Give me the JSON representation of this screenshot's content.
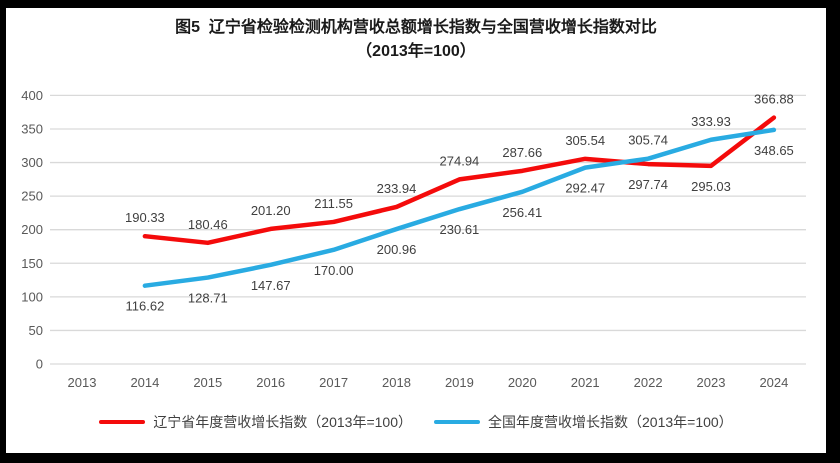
{
  "title": {
    "line1": "图5  辽宁省检验检测机构营收总额增长指数与全国营收增长指数对比",
    "line2": "（2013年=100）"
  },
  "chart_data": {
    "type": "line",
    "categories": [
      "2013",
      "2014",
      "2015",
      "2016",
      "2017",
      "2018",
      "2019",
      "2020",
      "2021",
      "2022",
      "2023",
      "2024"
    ],
    "series": [
      {
        "name": "辽宁省年度营收增长指数（2013年=100）",
        "color": "#f40b0b",
        "values": [
          null,
          190.33,
          180.46,
          201.2,
          211.55,
          233.94,
          274.94,
          287.66,
          305.54,
          297.74,
          295.03,
          366.88
        ],
        "value_labels": [
          "",
          "190.33",
          "180.46",
          "201.20",
          "211.55",
          "233.94",
          "274.94",
          "287.66",
          "305.54",
          "297.74",
          "295.03",
          "366.88"
        ],
        "label_sides": [
          "",
          "above",
          "above",
          "above",
          "above",
          "above",
          "above",
          "above",
          "above",
          "below",
          "below",
          "above"
        ]
      },
      {
        "name": "全国年度营收增长指数（2013年=100）",
        "color": "#29abe2",
        "values": [
          null,
          116.62,
          128.71,
          147.67,
          170.0,
          200.96,
          230.61,
          256.41,
          292.47,
          305.74,
          333.93,
          348.65
        ],
        "value_labels": [
          "",
          "116.62",
          "128.71",
          "147.67",
          "170.00",
          "200.96",
          "230.61",
          "256.41",
          "292.47",
          "305.74",
          "333.93",
          "348.65"
        ],
        "label_sides": [
          "",
          "below",
          "below",
          "below",
          "below",
          "below",
          "below",
          "below",
          "below",
          "above",
          "above",
          "below"
        ]
      }
    ],
    "xlabel": "",
    "ylabel": "",
    "ylim": [
      0,
      400
    ],
    "y_step": 50,
    "y_tick_labels": [
      "0",
      "50",
      "100",
      "150",
      "200",
      "250",
      "300",
      "350",
      "400"
    ],
    "grid": true,
    "legend_position": "bottom",
    "colors": {
      "gridline": "#d9d9d9",
      "axis_text": "#595959",
      "data_label_text": "#404040",
      "frame_border": "#000000",
      "background": "#ffffff"
    }
  }
}
